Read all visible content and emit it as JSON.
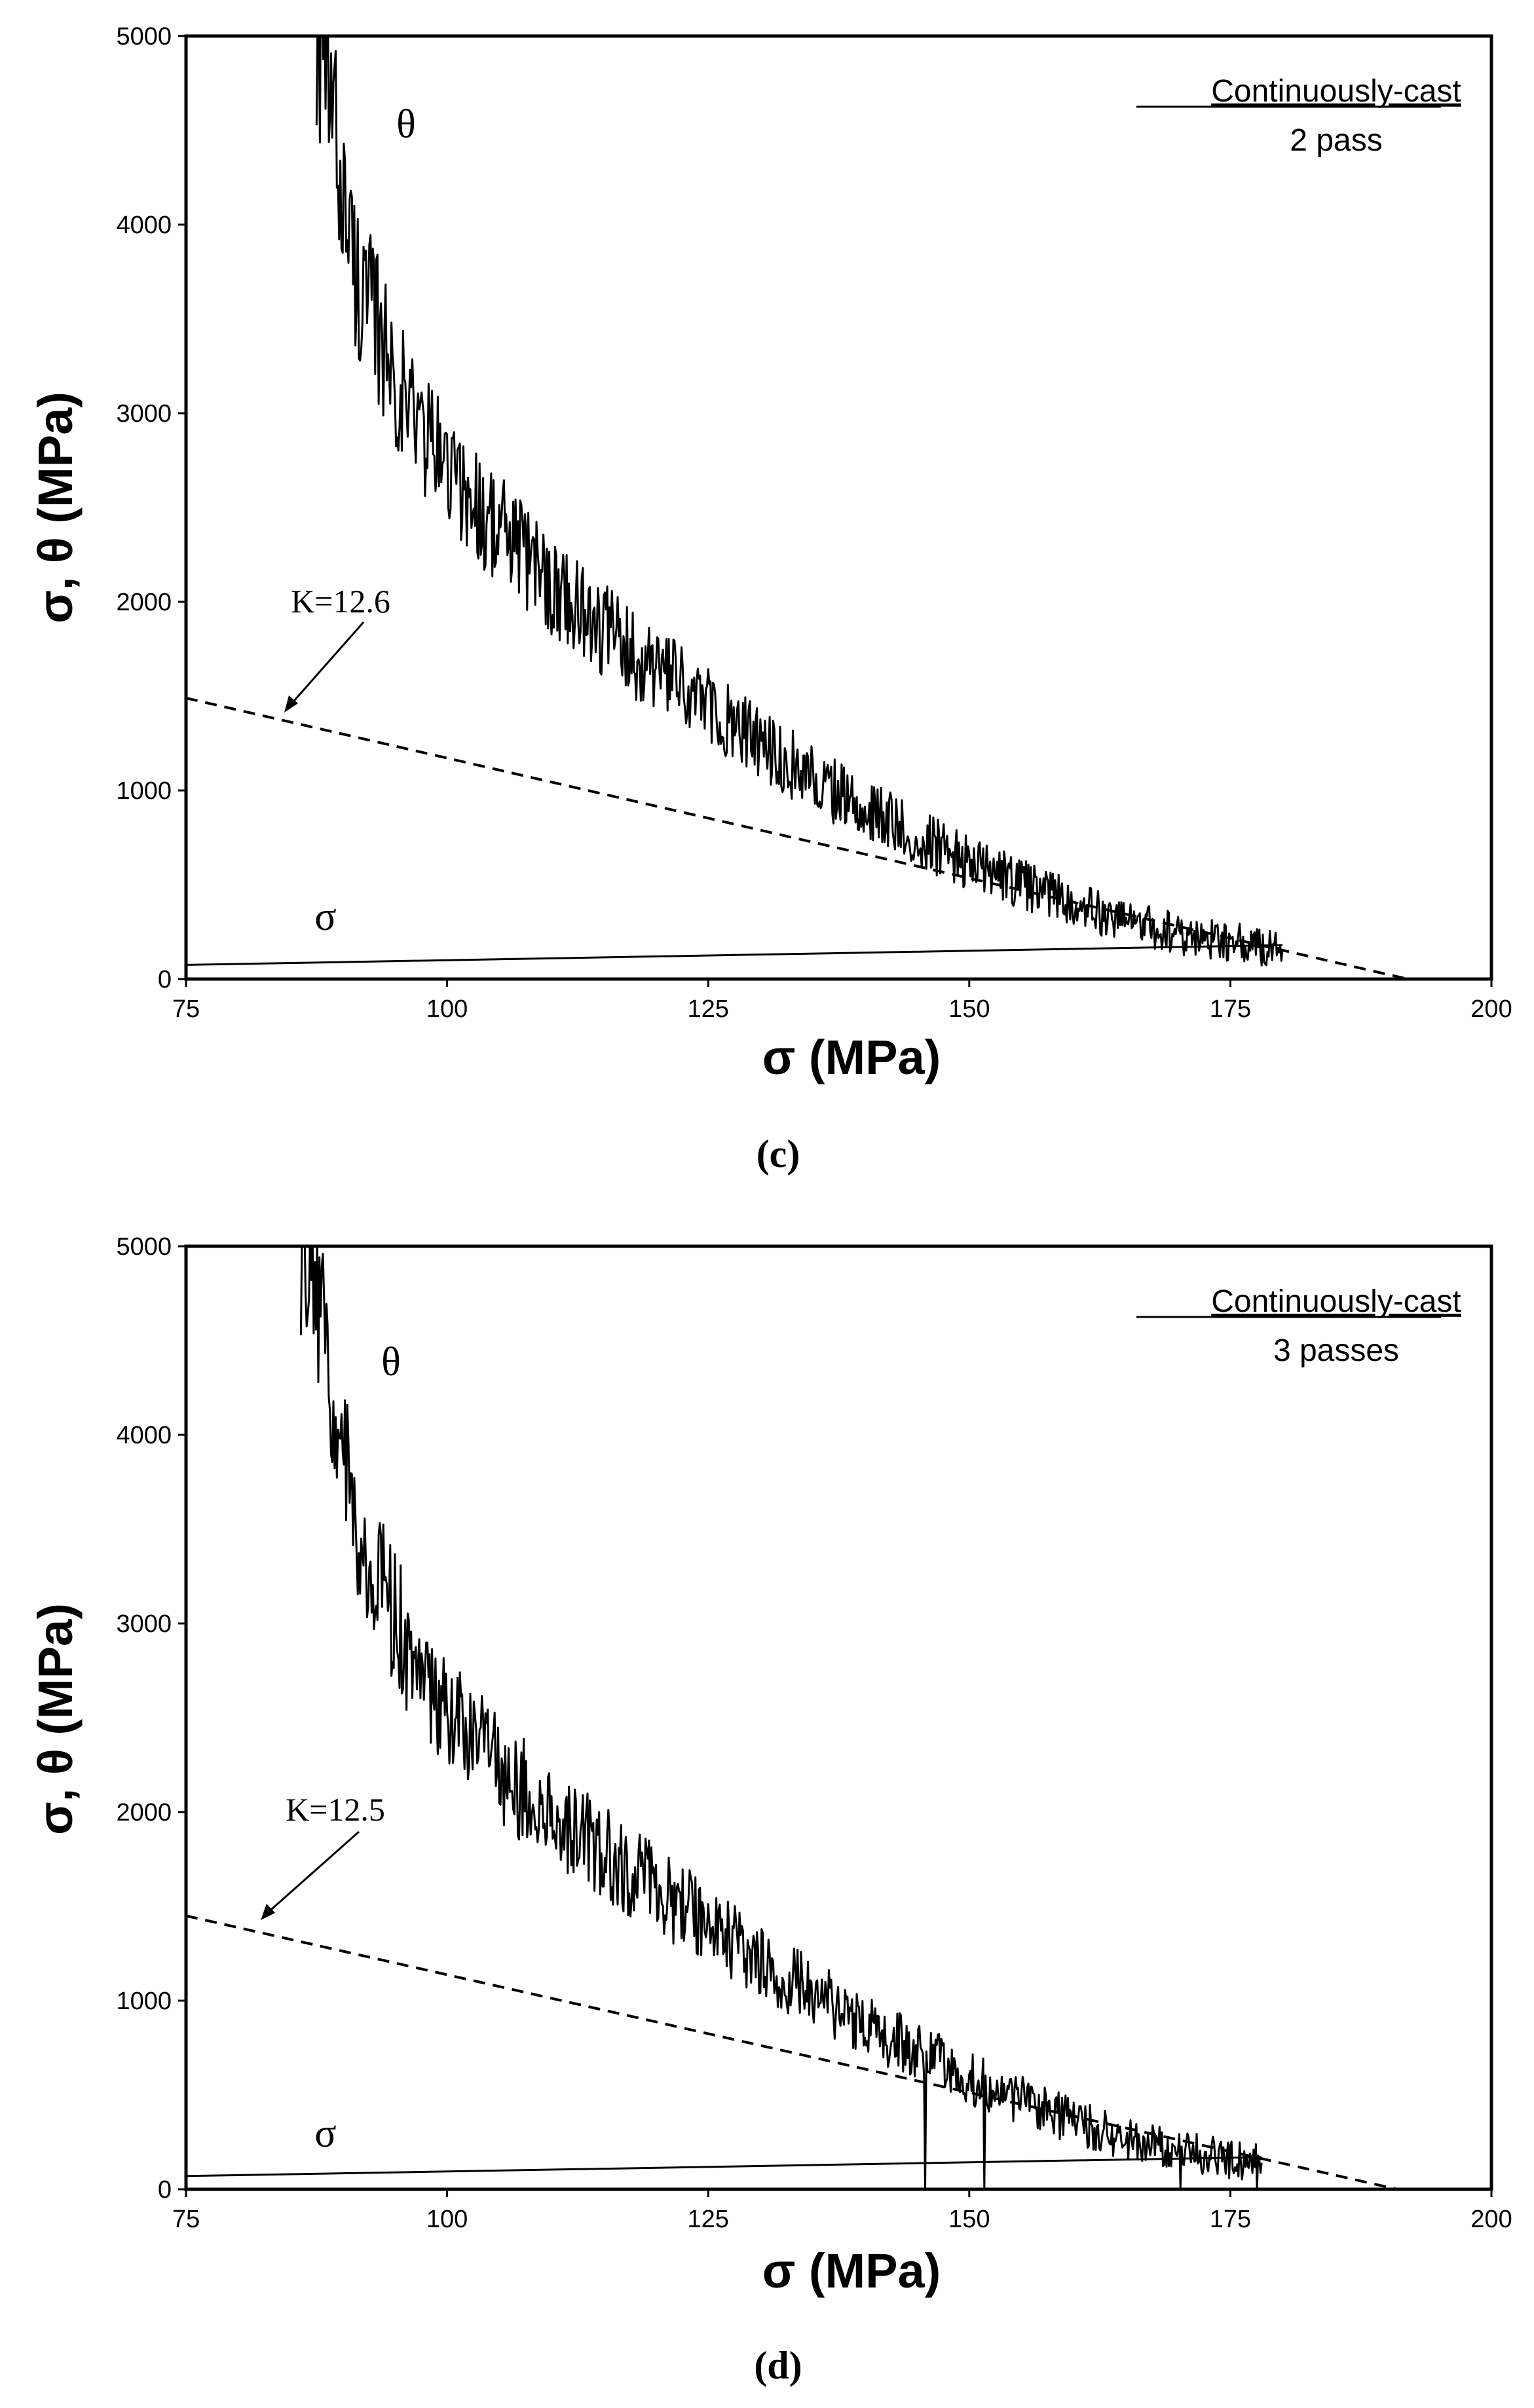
{
  "chart_data": [
    {
      "type": "line",
      "caption": "(c)",
      "caption_letter": "c",
      "xlabel": "σ (MPa)",
      "ylabel": "σ, θ (MPa)",
      "xlim": [
        75,
        200
      ],
      "ylim": [
        0,
        5000
      ],
      "xticks": [
        75,
        100,
        125,
        150,
        175,
        200
      ],
      "yticks": [
        0,
        1000,
        2000,
        3000,
        4000,
        5000
      ],
      "condition_title": "Continuously-cast",
      "condition_subtitle": "2 pass",
      "labels": {
        "theta": "θ",
        "sigma": "σ",
        "k_fit": "K=12.6"
      },
      "series": [
        {
          "name": "θ",
          "style": "solid-noisy",
          "x": [
            87.5,
            89,
            90,
            91,
            92,
            93,
            94,
            95,
            96,
            98,
            100,
            102,
            105,
            108,
            110,
            112,
            115,
            118,
            120,
            123,
            125,
            128,
            130,
            133,
            135,
            138,
            140,
            143,
            145,
            148,
            150,
            153,
            155,
            158,
            160,
            163,
            165,
            168,
            170,
            173,
            175,
            178,
            180
          ],
          "values": [
            5000,
            4600,
            4200,
            3800,
            3620,
            3500,
            3350,
            3200,
            3080,
            2880,
            2720,
            2560,
            2380,
            2210,
            2100,
            2000,
            1860,
            1730,
            1640,
            1520,
            1430,
            1320,
            1240,
            1140,
            1070,
            970,
            900,
            810,
            750,
            670,
            620,
            550,
            505,
            440,
            400,
            345,
            310,
            265,
            240,
            210,
            195,
            170,
            160
          ]
        },
        {
          "name": "σ",
          "style": "solid",
          "x": [
            75,
            180
          ],
          "values": [
            75,
            180
          ]
        },
        {
          "name": "K=12.6",
          "style": "dashed",
          "x": [
            75,
            192
          ],
          "values": [
            1490,
            0
          ]
        }
      ]
    },
    {
      "type": "line",
      "caption": "(d)",
      "caption_letter": "d",
      "xlabel": "σ (MPa)",
      "ylabel": "σ, θ (MPa)",
      "xlim": [
        75,
        200
      ],
      "ylim": [
        0,
        5000
      ],
      "xticks": [
        75,
        100,
        125,
        150,
        175,
        200
      ],
      "yticks": [
        0,
        1000,
        2000,
        3000,
        4000,
        5000
      ],
      "condition_title": "Continuously-cast",
      "condition_subtitle": "3 passes",
      "labels": {
        "theta": "θ",
        "sigma": "σ",
        "k_fit": "K=12.5"
      },
      "series": [
        {
          "name": "θ",
          "style": "solid-noisy",
          "x": [
            86,
            88,
            89,
            90,
            91,
            92,
            93,
            94,
            95,
            96,
            98,
            100,
            102,
            105,
            108,
            110,
            112,
            115,
            118,
            120,
            123,
            125,
            128,
            130,
            133,
            135,
            138,
            140,
            142,
            145,
            148,
            150,
            153,
            155,
            158,
            160,
            163,
            165,
            168,
            170,
            173,
            175,
            178
          ],
          "values": [
            5000,
            4650,
            4250,
            3900,
            3650,
            3450,
            3300,
            3150,
            3020,
            2900,
            2700,
            2540,
            2400,
            2230,
            2080,
            1990,
            1900,
            1780,
            1670,
            1590,
            1480,
            1400,
            1300,
            1220,
            1110,
            1040,
            940,
            870,
            810,
            730,
            650,
            590,
            520,
            470,
            400,
            360,
            300,
            270,
            225,
            205,
            175,
            160,
            140
          ]
        },
        {
          "name": "σ",
          "style": "solid",
          "x": [
            75,
            178
          ],
          "values": [
            70,
            170
          ]
        },
        {
          "name": "K=12.5",
          "style": "dashed",
          "x": [
            75,
            191
          ],
          "values": [
            1450,
            0
          ]
        }
      ]
    }
  ]
}
